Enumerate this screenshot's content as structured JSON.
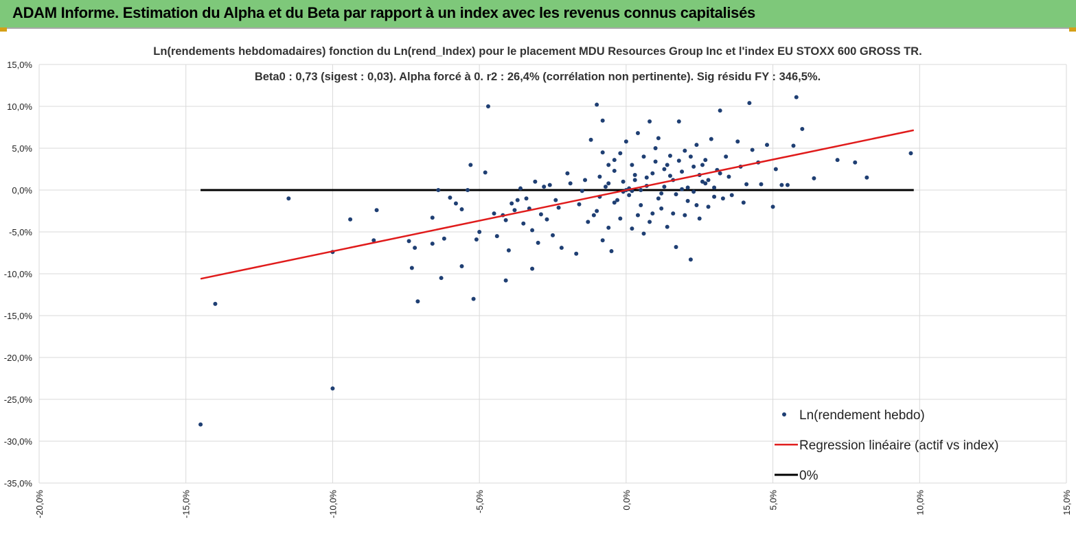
{
  "header": {
    "title": "ADAM Informe. Estimation du Alpha et du Beta par rapport à un index avec les revenus connus capitalisés"
  },
  "colors": {
    "banner": "#7ec87a",
    "points": "#1f3f73",
    "regression": "#e01b1b",
    "zero_line": "#000000",
    "grid": "#d9d9d9"
  },
  "chart_data": {
    "type": "scatter",
    "title": "Ln(rendements hebdomadaires) fonction du Ln(rend_Index) pour le placement MDU Resources Group Inc et l'index EU STOXX 600 GROSS TR.",
    "subtitle": "Beta0 : 0,73 (sigest : 0,03). Alpha forcé à 0. r2 : 26,4% (corrélation non pertinente). Sig résidu FY : 346,5%.",
    "xlabel": "",
    "ylabel": "",
    "xlim": [
      -0.2,
      0.15
    ],
    "ylim": [
      -0.35,
      0.15
    ],
    "x_ticks": [
      -0.2,
      -0.15,
      -0.1,
      -0.05,
      0.0,
      0.05,
      0.1,
      0.15
    ],
    "x_tick_labels": [
      "-20,0%",
      "-15,0%",
      "-10,0%",
      "-5,0%",
      "0,0%",
      "5,0%",
      "10,0%",
      "15,0%"
    ],
    "y_ticks": [
      0.15,
      0.1,
      0.05,
      0.0,
      -0.05,
      -0.1,
      -0.15,
      -0.2,
      -0.25,
      -0.3,
      -0.35
    ],
    "y_tick_labels": [
      "15,0%",
      "10,0%",
      "5,0%",
      "0,0%",
      "-5,0%",
      "-10,0%",
      "-15,0%",
      "-20,0%",
      "-25,0%",
      "-30,0%",
      "-35,0%"
    ],
    "grid": true,
    "legend_position": "bottom-right",
    "legend": [
      {
        "name": "Ln(rendement hebdo)",
        "kind": "point"
      },
      {
        "name": "Regression linéaire (actif vs index)",
        "kind": "line"
      },
      {
        "name": "0%",
        "kind": "line"
      }
    ],
    "series": [
      {
        "name": "Ln(rendement hebdo)",
        "kind": "scatter",
        "points": [
          [
            -0.145,
            -0.28
          ],
          [
            -0.14,
            -0.136
          ],
          [
            -0.1,
            -0.237
          ],
          [
            -0.115,
            -0.01
          ],
          [
            -0.1,
            -0.074
          ],
          [
            -0.094,
            -0.035
          ],
          [
            -0.085,
            -0.024
          ],
          [
            -0.086,
            -0.06
          ],
          [
            -0.071,
            -0.133
          ],
          [
            -0.074,
            -0.061
          ],
          [
            -0.073,
            -0.093
          ],
          [
            -0.072,
            -0.069
          ],
          [
            -0.063,
            -0.105
          ],
          [
            -0.052,
            -0.13
          ],
          [
            -0.047,
            0.1
          ],
          [
            -0.053,
            0.03
          ],
          [
            -0.048,
            0.021
          ],
          [
            -0.054,
            0.0
          ],
          [
            -0.064,
            0.0
          ],
          [
            -0.041,
            -0.108
          ],
          [
            -0.032,
            -0.094
          ],
          [
            -0.06,
            -0.009
          ],
          [
            -0.058,
            -0.016
          ],
          [
            -0.066,
            -0.033
          ],
          [
            -0.066,
            -0.064
          ],
          [
            -0.062,
            -0.058
          ],
          [
            -0.056,
            -0.091
          ],
          [
            -0.056,
            -0.023
          ],
          [
            -0.051,
            -0.059
          ],
          [
            -0.05,
            -0.05
          ],
          [
            -0.045,
            -0.028
          ],
          [
            -0.044,
            -0.055
          ],
          [
            -0.041,
            -0.036
          ],
          [
            -0.04,
            -0.072
          ],
          [
            -0.038,
            -0.024
          ],
          [
            -0.037,
            -0.012
          ],
          [
            -0.034,
            -0.01
          ],
          [
            -0.032,
            -0.048
          ],
          [
            -0.03,
            -0.063
          ],
          [
            -0.028,
            0.004
          ],
          [
            -0.027,
            -0.035
          ],
          [
            -0.025,
            -0.054
          ],
          [
            -0.023,
            -0.021
          ],
          [
            -0.022,
            -0.069
          ],
          [
            -0.02,
            0.02
          ],
          [
            -0.017,
            -0.076
          ],
          [
            -0.015,
            -0.001
          ],
          [
            -0.013,
            -0.038
          ],
          [
            -0.012,
            0.06
          ],
          [
            -0.01,
            -0.025
          ],
          [
            -0.009,
            0.016
          ],
          [
            -0.008,
            -0.06
          ],
          [
            -0.007,
            0.004
          ],
          [
            -0.006,
            0.03
          ],
          [
            -0.005,
            -0.073
          ],
          [
            -0.004,
            0.023
          ],
          [
            -0.01,
            0.102
          ],
          [
            -0.008,
            0.083
          ],
          [
            -0.003,
            -0.012
          ],
          [
            -0.002,
            0.044
          ],
          [
            0.0,
            0.058
          ],
          [
            0.002,
            -0.046
          ],
          [
            0.003,
            0.018
          ],
          [
            0.004,
            0.068
          ],
          [
            0.005,
            0.0
          ],
          [
            0.006,
            -0.052
          ],
          [
            0.007,
            0.015
          ],
          [
            0.008,
            0.082
          ],
          [
            0.009,
            -0.028
          ],
          [
            0.01,
            0.034
          ],
          [
            0.011,
            0.062
          ],
          [
            0.012,
            -0.004
          ],
          [
            0.013,
            0.025
          ],
          [
            0.014,
            -0.044
          ],
          [
            0.015,
            0.041
          ],
          [
            0.016,
            0.012
          ],
          [
            0.017,
            -0.068
          ],
          [
            0.018,
            0.082
          ],
          [
            0.019,
            0.001
          ],
          [
            0.02,
            0.047
          ],
          [
            0.021,
            -0.013
          ],
          [
            0.022,
            -0.083
          ],
          [
            0.023,
            0.028
          ],
          [
            0.024,
            0.054
          ],
          [
            0.025,
            -0.034
          ],
          [
            0.026,
            0.01
          ],
          [
            0.027,
            0.036
          ],
          [
            0.028,
            -0.02
          ],
          [
            0.029,
            0.061
          ],
          [
            0.03,
            0.003
          ],
          [
            0.031,
            0.024
          ],
          [
            0.032,
            0.095
          ],
          [
            0.033,
            -0.01
          ],
          [
            0.034,
            0.04
          ],
          [
            0.035,
            0.016
          ],
          [
            0.036,
            -0.006
          ],
          [
            0.038,
            0.058
          ],
          [
            0.039,
            0.028
          ],
          [
            0.04,
            -0.015
          ],
          [
            0.041,
            0.007
          ],
          [
            0.042,
            0.104
          ],
          [
            0.043,
            0.048
          ],
          [
            0.045,
            0.033
          ],
          [
            0.046,
            0.007
          ],
          [
            0.048,
            0.054
          ],
          [
            0.05,
            -0.02
          ],
          [
            0.051,
            0.025
          ],
          [
            0.053,
            0.006
          ],
          [
            0.055,
            0.006
          ],
          [
            0.057,
            0.053
          ],
          [
            0.058,
            0.111
          ],
          [
            0.06,
            0.073
          ],
          [
            0.064,
            0.014
          ],
          [
            0.072,
            0.036
          ],
          [
            0.078,
            0.033
          ],
          [
            0.082,
            0.015
          ],
          [
            0.097,
            0.044
          ],
          [
            -0.019,
            0.008
          ],
          [
            -0.016,
            -0.017
          ],
          [
            -0.014,
            0.012
          ],
          [
            -0.011,
            -0.03
          ],
          [
            -0.009,
            -0.008
          ],
          [
            -0.006,
            0.008
          ],
          [
            -0.004,
            -0.015
          ],
          [
            -0.001,
            0.01
          ],
          [
            0.001,
            -0.006
          ],
          [
            0.003,
            0.012
          ],
          [
            0.005,
            -0.018
          ],
          [
            0.007,
            0.005
          ],
          [
            0.009,
            0.02
          ],
          [
            0.011,
            -0.01
          ],
          [
            0.013,
            0.004
          ],
          [
            0.015,
            0.017
          ],
          [
            0.017,
            -0.005
          ],
          [
            0.019,
            0.022
          ],
          [
            0.021,
            0.003
          ],
          [
            0.023,
            -0.002
          ],
          [
            0.025,
            0.018
          ],
          [
            0.027,
            0.008
          ],
          [
            -0.024,
            -0.012
          ],
          [
            -0.026,
            0.006
          ],
          [
            -0.029,
            -0.029
          ],
          [
            -0.031,
            0.01
          ],
          [
            -0.033,
            -0.022
          ],
          [
            -0.035,
            -0.04
          ],
          [
            -0.036,
            0.002
          ],
          [
            -0.039,
            -0.016
          ],
          [
            -0.042,
            -0.03
          ],
          [
            0.002,
            0.03
          ],
          [
            0.004,
            -0.03
          ],
          [
            0.006,
            0.04
          ],
          [
            0.008,
            -0.038
          ],
          [
            0.01,
            0.05
          ],
          [
            0.012,
            -0.022
          ],
          [
            0.014,
            0.03
          ],
          [
            0.016,
            -0.028
          ],
          [
            -0.002,
            -0.034
          ],
          [
            -0.004,
            0.036
          ],
          [
            -0.006,
            -0.045
          ],
          [
            -0.008,
            0.045
          ],
          [
            0.0,
            0.0
          ],
          [
            0.001,
            0.002
          ],
          [
            -0.001,
            -0.002
          ],
          [
            0.002,
            -0.001
          ],
          [
            0.018,
            0.035
          ],
          [
            0.02,
            -0.03
          ],
          [
            0.022,
            0.04
          ],
          [
            0.024,
            -0.018
          ],
          [
            0.026,
            0.03
          ],
          [
            0.028,
            0.012
          ],
          [
            0.03,
            -0.008
          ],
          [
            0.032,
            0.02
          ]
        ]
      },
      {
        "name": "Regression linéaire (actif vs index)",
        "kind": "line",
        "points": [
          [
            -0.145,
            -0.106
          ],
          [
            0.098,
            0.0715
          ]
        ]
      },
      {
        "name": "0%",
        "kind": "line",
        "points": [
          [
            -0.145,
            0.0
          ],
          [
            0.098,
            0.0
          ]
        ]
      }
    ]
  }
}
